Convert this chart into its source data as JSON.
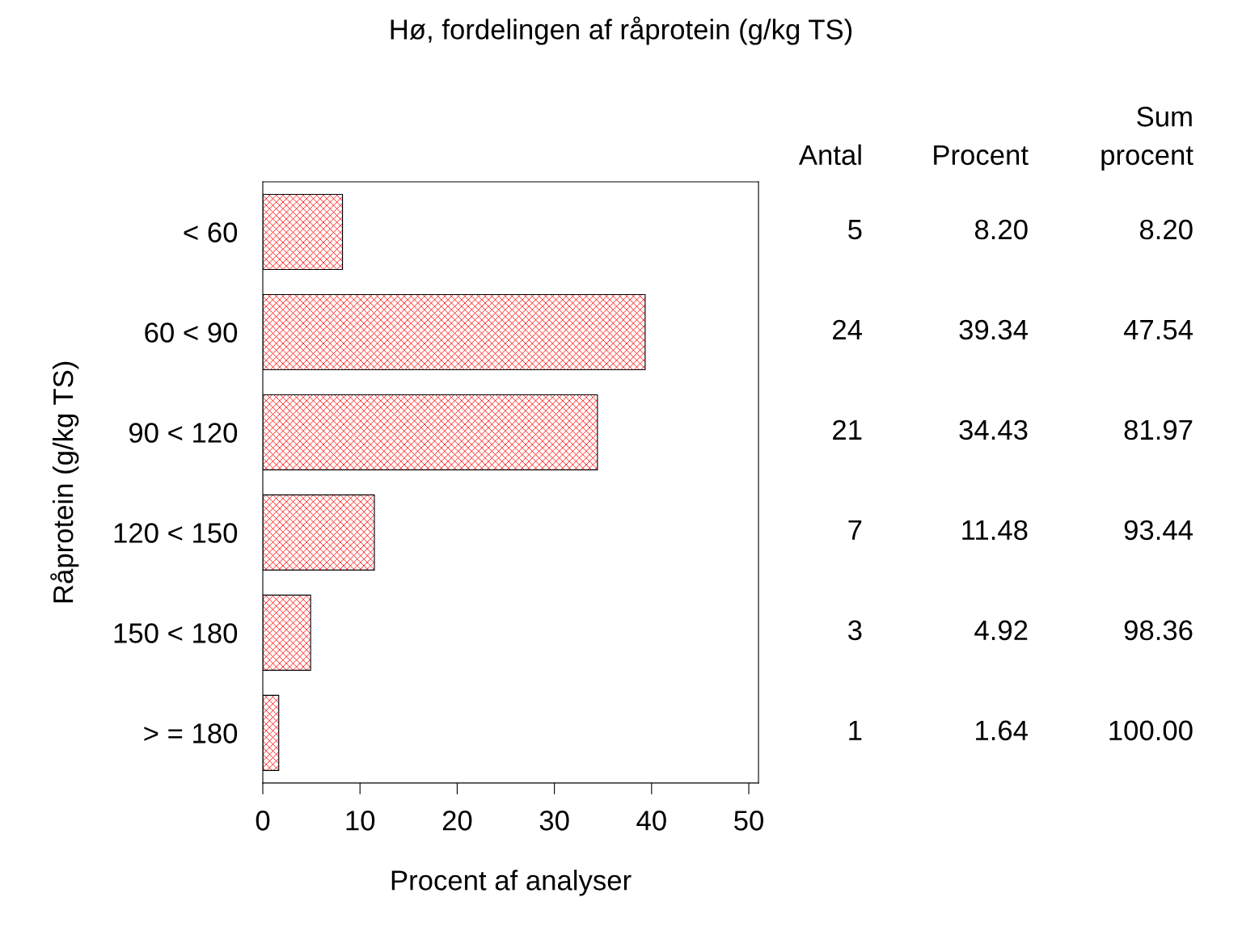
{
  "chart_data": {
    "type": "bar",
    "orientation": "horizontal",
    "title": "Hø, fordelingen af råprotein (g/kg TS)",
    "xlabel": "Procent af analyser",
    "ylabel": "Råprotein (g/kg TS)",
    "categories": [
      "< 60",
      "60 < 90",
      "90 < 120",
      "120 < 150",
      "150 < 180",
      "> = 180"
    ],
    "values": [
      8.2,
      39.34,
      34.43,
      11.48,
      4.92,
      1.64
    ],
    "value_labels": [
      "8.20",
      "39.34",
      "34.43",
      "11.48",
      "4.92",
      "1.64"
    ],
    "color": "#ff0000",
    "xlim": [
      0,
      51
    ],
    "xticks": [
      0,
      10,
      20,
      30,
      40,
      50
    ],
    "grid": false,
    "annotations": [
      "Antal",
      "Procent",
      "Sum\nprocent",
      "5",
      "8.20",
      "24",
      "47.54",
      "21",
      "81.97",
      "7",
      "93.44",
      "3",
      "98.36",
      "1",
      "100.00"
    ]
  }
}
